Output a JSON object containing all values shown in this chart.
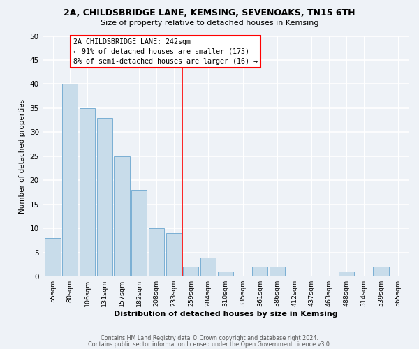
{
  "title": "2A, CHILDSBRIDGE LANE, KEMSING, SEVENOAKS, TN15 6TH",
  "subtitle": "Size of property relative to detached houses in Kemsing",
  "xlabel": "Distribution of detached houses by size in Kemsing",
  "ylabel": "Number of detached properties",
  "bar_color": "#c8dcea",
  "bar_edge_color": "#7aafd4",
  "bin_labels": [
    "55sqm",
    "80sqm",
    "106sqm",
    "131sqm",
    "157sqm",
    "182sqm",
    "208sqm",
    "233sqm",
    "259sqm",
    "284sqm",
    "310sqm",
    "335sqm",
    "361sqm",
    "386sqm",
    "412sqm",
    "437sqm",
    "463sqm",
    "488sqm",
    "514sqm",
    "539sqm",
    "565sqm"
  ],
  "bar_heights": [
    8,
    40,
    35,
    33,
    25,
    18,
    10,
    9,
    2,
    4,
    1,
    0,
    2,
    2,
    0,
    0,
    0,
    1,
    0,
    2,
    0
  ],
  "ylim": [
    0,
    50
  ],
  "yticks": [
    0,
    5,
    10,
    15,
    20,
    25,
    30,
    35,
    40,
    45,
    50
  ],
  "vline_x": 7.5,
  "annotation_line1": "2A CHILDSBRIDGE LANE: 242sqm",
  "annotation_line2": "← 91% of detached houses are smaller (175)",
  "annotation_line3": "8% of semi-detached houses are larger (16) →",
  "footer_line1": "Contains HM Land Registry data © Crown copyright and database right 2024.",
  "footer_line2": "Contains public sector information licensed under the Open Government Licence v3.0.",
  "background_color": "#eef2f7",
  "grid_color": "#ffffff"
}
